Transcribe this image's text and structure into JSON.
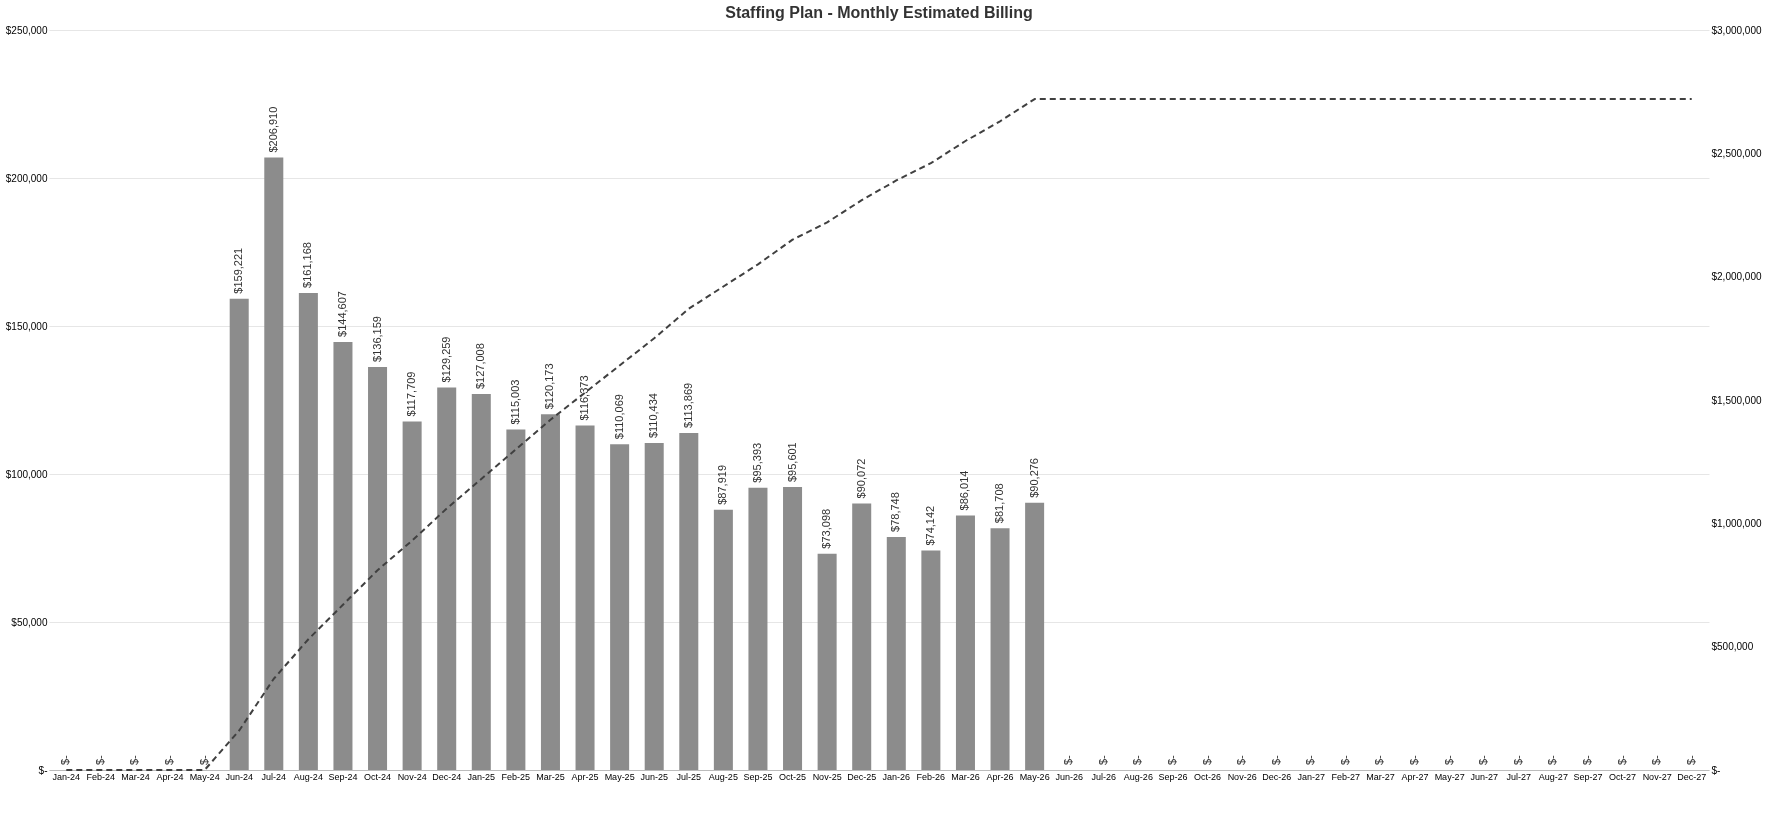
{
  "chart_data": {
    "type": "bar",
    "title": "Staffing Plan - Monthly Estimated Billing",
    "categories": [
      "Jan-24",
      "Feb-24",
      "Mar-24",
      "Apr-24",
      "May-24",
      "Jun-24",
      "Jul-24",
      "Aug-24",
      "Sep-24",
      "Oct-24",
      "Nov-24",
      "Dec-24",
      "Jan-25",
      "Feb-25",
      "Mar-25",
      "Apr-25",
      "May-25",
      "Jun-25",
      "Jul-25",
      "Aug-25",
      "Sep-25",
      "Oct-25",
      "Nov-25",
      "Dec-25",
      "Jan-26",
      "Feb-26",
      "Mar-26",
      "Apr-26",
      "May-26",
      "Jun-26",
      "Jul-26",
      "Aug-26",
      "Sep-26",
      "Oct-26",
      "Nov-26",
      "Dec-26",
      "Jan-27",
      "Feb-27",
      "Mar-27",
      "Apr-27",
      "May-27",
      "Jun-27",
      "Jul-27",
      "Aug-27",
      "Sep-27",
      "Oct-27",
      "Nov-27",
      "Dec-27"
    ],
    "series": [
      {
        "color": "#8c8c8c",
        "values": [
          0,
          0,
          0,
          0,
          0,
          159221,
          206910,
          161168,
          144607,
          136159,
          117709,
          129259,
          127008,
          115003,
          120173,
          116373,
          110069,
          110434,
          113869,
          87919,
          95393,
          95601,
          73098,
          90072,
          78748,
          74142,
          86014,
          81708,
          90276,
          0,
          0,
          0,
          0,
          0,
          0,
          0,
          0,
          0,
          0,
          0,
          0,
          0,
          0,
          0,
          0,
          0,
          0,
          0
        ],
        "value_labels": [
          "$-",
          "$-",
          "$-",
          "$-",
          "$-",
          "$159,221",
          "$206,910",
          "$161,168",
          "$144,607",
          "$136,159",
          "$117,709",
          "$129,259",
          "$127,008",
          "$115,003",
          "$120,173",
          "$116,373",
          "$110,069",
          "$110,434",
          "$113,869",
          "$87,919",
          "$95,393",
          "$95,601",
          "$73,098",
          "$90,072",
          "$78,748",
          "$74,142",
          "$86,014",
          "$81,708",
          "$90,276",
          "$-",
          "$-",
          "$-",
          "$-",
          "$-",
          "$-",
          "$-",
          "$-",
          "$-",
          "$-",
          "$-",
          "$-",
          "$-",
          "$-",
          "$-",
          "$-",
          "$-",
          "$-",
          "$-"
        ]
      },
      {
        "type": "line",
        "axis": "y2",
        "color": "#404040",
        "line_style": "dashed",
        "values": [
          0,
          0,
          0,
          0,
          0,
          160000,
          370000,
          530000,
          670000,
          810000,
          930000,
          1060000,
          1180000,
          1300000,
          1420000,
          1530000,
          1640000,
          1750000,
          1870000,
          1960000,
          2050000,
          2150000,
          2220000,
          2310000,
          2390000,
          2460000,
          2550000,
          2630000,
          2720000,
          2720000,
          2720000,
          2720000,
          2720000,
          2720000,
          2720000,
          2720000,
          2720000,
          2720000,
          2720000,
          2720000,
          2720000,
          2720000,
          2720000,
          2720000,
          2720000,
          2720000,
          2720000,
          2720000
        ]
      }
    ],
    "ylim": [
      0,
      250000
    ],
    "yticks": [
      {
        "value": 0,
        "label": "$-"
      },
      {
        "value": 50000,
        "label": "$50,000"
      },
      {
        "value": 100000,
        "label": "$100,000"
      },
      {
        "value": 150000,
        "label": "$150,000"
      },
      {
        "value": 200000,
        "label": "$200,000"
      },
      {
        "value": 250000,
        "label": "$250,000"
      }
    ],
    "y2lim": [
      0,
      3000000
    ],
    "y2ticks": [
      {
        "value": 0,
        "label": "$-"
      },
      {
        "value": 500000,
        "label": "$500,000"
      },
      {
        "value": 1000000,
        "label": "$1,000,000"
      },
      {
        "value": 1500000,
        "label": "$1,500,000"
      },
      {
        "value": 2000000,
        "label": "$2,000,000"
      },
      {
        "value": 2500000,
        "label": "$2,500,000"
      },
      {
        "value": 3000000,
        "label": "$3,000,000"
      }
    ],
    "grid": "y"
  }
}
